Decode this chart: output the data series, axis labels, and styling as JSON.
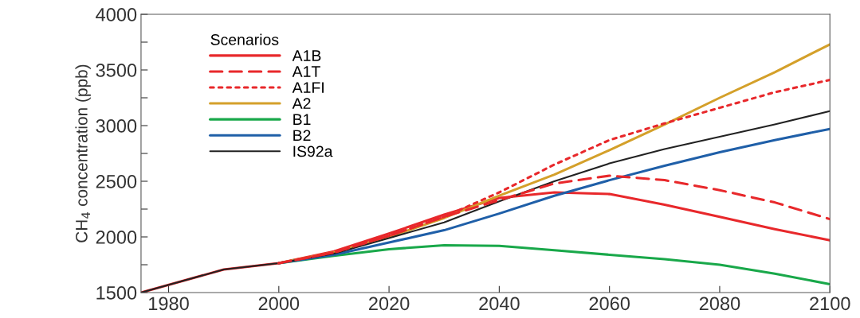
{
  "chart_data": {
    "type": "line",
    "ylabel": "CH$_{4}$ concentration (ppb)",
    "legend_title": "Scenarios",
    "legend": "top left",
    "grid": false,
    "marker": "none",
    "xlim": [
      1975,
      2100
    ],
    "xticks": [
      1980,
      2000,
      2020,
      2040,
      2060,
      2080,
      2100
    ],
    "ylim": [
      1500,
      4000
    ],
    "yticks": [
      1500,
      {
        "value": 1750,
        "label": null
      },
      2000,
      {
        "value": 2250,
        "label": null
      },
      2500,
      {
        "value": 2750,
        "label": null
      },
      3000,
      {
        "value": 3250,
        "label": null
      },
      3500,
      {
        "value": 3750,
        "label": null
      },
      4000
    ],
    "series": [
      {
        "name": "A1B",
        "color": "#e8282b",
        "line_style": "solid",
        "x": [
          1975,
          1990,
          2000,
          2010,
          2020,
          2030,
          2040,
          2050,
          2060,
          2070,
          2080,
          2090,
          2100
        ],
        "values": [
          1500,
          1707,
          1764,
          1870,
          2030,
          2200,
          2350,
          2400,
          2385,
          2290,
          2180,
          2070,
          1970
        ]
      },
      {
        "name": "A1T",
        "color": "#e8282b",
        "line_style": "dashed",
        "x": [
          2000,
          2010,
          2020,
          2030,
          2040,
          2050,
          2060,
          2070,
          2080,
          2090,
          2100
        ],
        "values": [
          1764,
          1860,
          2010,
          2180,
          2330,
          2480,
          2550,
          2510,
          2420,
          2310,
          2160
        ]
      },
      {
        "name": "A1FI",
        "color": "#e8282b",
        "line_style": "dotted",
        "x": [
          2000,
          2010,
          2020,
          2030,
          2040,
          2050,
          2060,
          2070,
          2080,
          2090,
          2100
        ],
        "values": [
          1764,
          1860,
          2010,
          2180,
          2400,
          2650,
          2870,
          3020,
          3160,
          3300,
          3410
        ]
      },
      {
        "name": "A2",
        "color": "#d4a02a",
        "line_style": "solid",
        "x": [
          2000,
          2010,
          2020,
          2030,
          2040,
          2050,
          2060,
          2070,
          2080,
          2090,
          2100
        ],
        "values": [
          1764,
          1860,
          2000,
          2170,
          2370,
          2560,
          2780,
          3010,
          3250,
          3480,
          3730
        ]
      },
      {
        "name": "B1",
        "color": "#19a84a",
        "line_style": "solid",
        "x": [
          2000,
          2010,
          2020,
          2030,
          2040,
          2050,
          2060,
          2070,
          2080,
          2090,
          2100
        ],
        "values": [
          1764,
          1830,
          1890,
          1925,
          1920,
          1880,
          1840,
          1800,
          1750,
          1670,
          1575
        ]
      },
      {
        "name": "B2",
        "color": "#1f5fa8",
        "line_style": "solid",
        "x": [
          2000,
          2010,
          2020,
          2030,
          2040,
          2050,
          2060,
          2070,
          2080,
          2090,
          2100
        ],
        "values": [
          1764,
          1840,
          1950,
          2060,
          2210,
          2370,
          2510,
          2640,
          2760,
          2870,
          2970
        ]
      },
      {
        "name": "IS92a",
        "color": "#222222",
        "line_style": "solid",
        "x": [
          1975,
          1990,
          2000,
          2010,
          2020,
          2030,
          2040,
          2050,
          2060,
          2070,
          2080,
          2090,
          2100
        ],
        "values": [
          1500,
          1707,
          1764,
          1850,
          1990,
          2130,
          2320,
          2500,
          2660,
          2790,
          2900,
          3010,
          3130
        ]
      }
    ]
  }
}
